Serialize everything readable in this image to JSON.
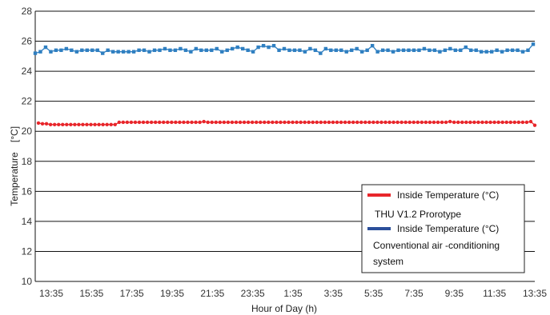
{
  "chart_data": {
    "type": "line",
    "xlabel": "Hour of Day (h)",
    "ylabel": "Temperature",
    "yunit": "[°C]",
    "ylim": [
      10,
      28
    ],
    "yticks": [
      10,
      12,
      14,
      16,
      18,
      20,
      22,
      24,
      26,
      28
    ],
    "grid": "horizontal",
    "legend_position": "bottom-right",
    "x_tick_labels": [
      "13:35",
      "15:35",
      "17:35",
      "19:35",
      "21:35",
      "23:35",
      "1:35",
      "3:35",
      "5:35",
      "7:35",
      "9:35",
      "11:35",
      "13:35"
    ],
    "series": [
      {
        "name": "Inside Temperature (°C)",
        "name_line2": "THU V1.2 Prorotype",
        "color": "#e8262b",
        "marker": "circle",
        "values": [
          20.55,
          20.5,
          20.5,
          20.45,
          20.45,
          20.45,
          20.45,
          20.45,
          20.45,
          20.45,
          20.45,
          20.45,
          20.45,
          20.45,
          20.45,
          20.45,
          20.45,
          20.45,
          20.45,
          20.45,
          20.6,
          20.6,
          20.6,
          20.6,
          20.6,
          20.6,
          20.6,
          20.6,
          20.6,
          20.6,
          20.6,
          20.6,
          20.6,
          20.6,
          20.6,
          20.6,
          20.6,
          20.6,
          20.6,
          20.6,
          20.6,
          20.65,
          20.6,
          20.6,
          20.6,
          20.6,
          20.6,
          20.6,
          20.6,
          20.6,
          20.6,
          20.6,
          20.6,
          20.6,
          20.6,
          20.6,
          20.6,
          20.6,
          20.6,
          20.6,
          20.6,
          20.6,
          20.6,
          20.6,
          20.6,
          20.6,
          20.6,
          20.6,
          20.6,
          20.6,
          20.6,
          20.6,
          20.6,
          20.6,
          20.6,
          20.6,
          20.6,
          20.6,
          20.6,
          20.6,
          20.6,
          20.6,
          20.6,
          20.6,
          20.6,
          20.6,
          20.6,
          20.6,
          20.6,
          20.6,
          20.6,
          20.6,
          20.6,
          20.6,
          20.6,
          20.6,
          20.6,
          20.6,
          20.6,
          20.6,
          20.6,
          20.6,
          20.65,
          20.6,
          20.6,
          20.6,
          20.6,
          20.6,
          20.6,
          20.6,
          20.6,
          20.6,
          20.6,
          20.6,
          20.6,
          20.6,
          20.6,
          20.6,
          20.6,
          20.6,
          20.6,
          20.6,
          20.65,
          20.4
        ]
      },
      {
        "name": "Inside Temperature (°C)",
        "name_line2": "Conventional air -conditioning",
        "name_line3": "system",
        "color": "#2f7fc1",
        "marker": "square",
        "values": [
          25.2,
          25.3,
          25.6,
          25.3,
          25.4,
          25.4,
          25.5,
          25.4,
          25.3,
          25.4,
          25.4,
          25.4,
          25.4,
          25.2,
          25.4,
          25.3,
          25.3,
          25.3,
          25.3,
          25.3,
          25.4,
          25.4,
          25.3,
          25.4,
          25.4,
          25.5,
          25.4,
          25.4,
          25.5,
          25.4,
          25.3,
          25.5,
          25.4,
          25.4,
          25.4,
          25.5,
          25.3,
          25.4,
          25.5,
          25.6,
          25.5,
          25.4,
          25.3,
          25.6,
          25.7,
          25.6,
          25.7,
          25.4,
          25.5,
          25.4,
          25.4,
          25.4,
          25.3,
          25.5,
          25.4,
          25.2,
          25.5,
          25.4,
          25.4,
          25.4,
          25.3,
          25.4,
          25.5,
          25.3,
          25.4,
          25.7,
          25.3,
          25.4,
          25.4,
          25.3,
          25.4,
          25.4,
          25.4,
          25.4,
          25.4,
          25.5,
          25.4,
          25.4,
          25.3,
          25.4,
          25.5,
          25.4,
          25.4,
          25.6,
          25.4,
          25.4,
          25.3,
          25.3,
          25.3,
          25.4,
          25.3,
          25.4,
          25.4,
          25.4,
          25.3,
          25.4,
          25.8
        ]
      }
    ]
  }
}
